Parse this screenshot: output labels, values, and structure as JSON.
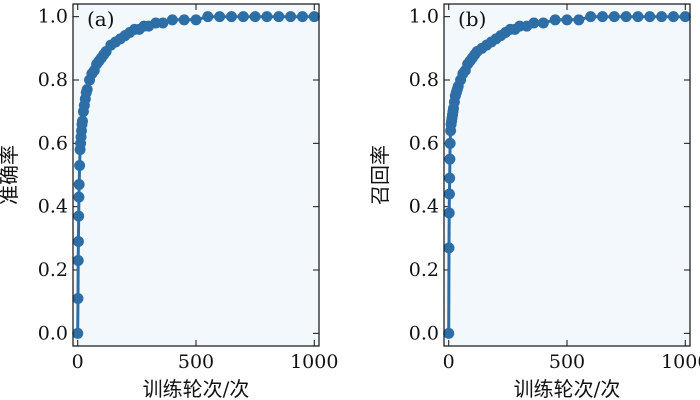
{
  "style": {
    "series_color": "#2e6ea6",
    "plot_background": "#f3f8fc",
    "axis_color": "#111111"
  },
  "chart_data": [
    {
      "type": "line",
      "panel_label": "(a)",
      "xlabel": "训练轮次/次",
      "ylabel": "准确率",
      "xlim": [
        -20,
        1020
      ],
      "ylim": [
        -0.04,
        1.04
      ],
      "xticks": [
        "0",
        "500",
        "1000"
      ],
      "yticks": [
        "0.0",
        "0.2",
        "0.4",
        "0.6",
        "0.8",
        "1.0"
      ],
      "grid": false,
      "markers": true,
      "series": [
        {
          "x": [
            0,
            1,
            2,
            3,
            4,
            5,
            6,
            8,
            10,
            12,
            14,
            16,
            18,
            20,
            24,
            28,
            32,
            36,
            40,
            50,
            60,
            70,
            80,
            90,
            100,
            110,
            120,
            140,
            160,
            180,
            200,
            220,
            240,
            260,
            280,
            300,
            330,
            360,
            400,
            450,
            500,
            550,
            600,
            650,
            700,
            750,
            800,
            850,
            900,
            950,
            1000
          ],
          "y": [
            0.0,
            0.11,
            0.23,
            0.29,
            0.37,
            0.43,
            0.47,
            0.53,
            0.58,
            0.6,
            0.62,
            0.64,
            0.66,
            0.67,
            0.7,
            0.72,
            0.74,
            0.76,
            0.77,
            0.8,
            0.82,
            0.83,
            0.85,
            0.86,
            0.87,
            0.88,
            0.89,
            0.91,
            0.92,
            0.93,
            0.94,
            0.95,
            0.96,
            0.96,
            0.97,
            0.97,
            0.98,
            0.98,
            0.99,
            0.99,
            0.99,
            1.0,
            1.0,
            1.0,
            1.0,
            1.0,
            1.0,
            1.0,
            1.0,
            1.0,
            1.0
          ]
        }
      ]
    },
    {
      "type": "line",
      "panel_label": "(b)",
      "xlabel": "训练轮次/次",
      "ylabel": "召回率",
      "xlim": [
        -20,
        1020
      ],
      "ylim": [
        -0.04,
        1.04
      ],
      "xticks": [
        "0",
        "500",
        "1000"
      ],
      "yticks": [
        "0.0",
        "0.2",
        "0.4",
        "0.6",
        "0.8",
        "1.0"
      ],
      "grid": false,
      "markers": true,
      "series": [
        {
          "x": [
            0,
            1,
            2,
            3,
            4,
            5,
            6,
            8,
            10,
            12,
            14,
            16,
            18,
            20,
            24,
            28,
            32,
            36,
            40,
            50,
            60,
            70,
            80,
            90,
            100,
            110,
            120,
            140,
            160,
            180,
            200,
            220,
            240,
            260,
            280,
            300,
            330,
            360,
            400,
            450,
            500,
            550,
            600,
            650,
            700,
            750,
            800,
            850,
            900,
            950,
            1000
          ],
          "y": [
            0.0,
            0.27,
            0.38,
            0.44,
            0.49,
            0.55,
            0.6,
            0.64,
            0.66,
            0.67,
            0.68,
            0.69,
            0.7,
            0.71,
            0.73,
            0.75,
            0.76,
            0.77,
            0.78,
            0.8,
            0.82,
            0.83,
            0.85,
            0.86,
            0.87,
            0.88,
            0.89,
            0.9,
            0.91,
            0.92,
            0.93,
            0.94,
            0.95,
            0.96,
            0.96,
            0.97,
            0.97,
            0.98,
            0.98,
            0.99,
            0.99,
            0.99,
            1.0,
            1.0,
            1.0,
            1.0,
            1.0,
            1.0,
            1.0,
            1.0,
            1.0
          ]
        }
      ]
    }
  ]
}
